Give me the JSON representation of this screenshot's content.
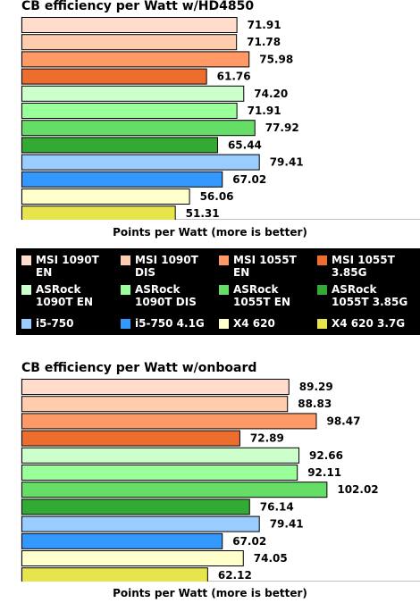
{
  "colors": {
    "MSI 1090T EN": "#ffdccc",
    "MSI 1090T DIS": "#ffccae",
    "MSI 1055T EN": "#ff9966",
    "MSI 1055T 3.85G": "#ed6d2f",
    "ASRock 1090T EN": "#ccffcc",
    "ASRock 1090T DIS": "#99ff99",
    "ASRock 1055T EN": "#66dd66",
    "ASRock 1055T 3.85G": "#33aa33",
    "i5-750": "#99ccff",
    "i5-750 4.1G": "#3399ff",
    "X4 620": "#ffffcc",
    "X4 620 3.7G": "#e6e64c"
  },
  "legend": [
    {
      "name": "MSI 1090T EN",
      "label": "MSI 1090T\nEN"
    },
    {
      "name": "MSI 1090T DIS",
      "label": "MSI 1090T\nDIS"
    },
    {
      "name": "MSI 1055T EN",
      "label": "MSI 1055T\nEN"
    },
    {
      "name": "MSI 1055T 3.85G",
      "label": "MSI 1055T\n3.85G"
    },
    {
      "name": "ASRock 1090T EN",
      "label": "ASRock\n1090T EN"
    },
    {
      "name": "ASRock 1090T DIS",
      "label": "ASRock\n1090T DIS"
    },
    {
      "name": "ASRock 1055T EN",
      "label": "ASRock\n1055T EN"
    },
    {
      "name": "ASRock 1055T 3.85G",
      "label": "ASRock\n1055T 3.85G"
    },
    {
      "name": "i5-750",
      "label": "i5-750"
    },
    {
      "name": "i5-750 4.1G",
      "label": "i5-750 4.1G"
    },
    {
      "name": "X4 620",
      "label": "X4 620"
    },
    {
      "name": "X4 620 3.7G",
      "label": "X4 620 3.7G"
    }
  ],
  "chart_data": [
    {
      "type": "bar",
      "orientation": "horizontal",
      "title": "CB efficiency per Watt w/HD4850",
      "xlabel": "Points per Watt (more is better)",
      "ylabel": "",
      "xlim": [
        0,
        112
      ],
      "grid": false,
      "legend_position": "bottom",
      "categories": [
        "MSI 1090T EN",
        "MSI 1090T DIS",
        "MSI 1055T EN",
        "MSI 1055T 3.85G",
        "ASRock 1090T EN",
        "ASRock 1090T DIS",
        "ASRock 1055T EN",
        "ASRock 1055T 3.85G",
        "i5-750",
        "i5-750 4.1G",
        "X4 620",
        "X4 620 3.7G"
      ],
      "values": [
        71.91,
        71.78,
        75.98,
        61.76,
        74.2,
        71.91,
        77.92,
        65.44,
        79.41,
        67.02,
        56.06,
        51.31
      ],
      "value_labels": [
        "71.91",
        "71.78",
        "75.98",
        "61.76",
        "74.20",
        "71.91",
        "77.92",
        "65.44",
        "79.41",
        "67.02",
        "56.06",
        "51.31"
      ]
    },
    {
      "type": "bar",
      "orientation": "horizontal",
      "title": "CB efficiency per Watt w/onboard",
      "xlabel": "Points per Watt (more is better)",
      "ylabel": "",
      "xlim": [
        0,
        112
      ],
      "grid": false,
      "legend_position": "top",
      "categories": [
        "MSI 1090T EN",
        "MSI 1090T DIS",
        "MSI 1055T EN",
        "MSI 1055T 3.85G",
        "ASRock 1090T EN",
        "ASRock 1090T DIS",
        "ASRock 1055T EN",
        "ASRock 1055T 3.85G",
        "i5-750",
        "i5-750 4.1G",
        "X4 620",
        "X4 620 3.7G"
      ],
      "values": [
        89.29,
        88.83,
        98.47,
        72.89,
        92.66,
        92.11,
        102.02,
        76.14,
        79.41,
        67.02,
        74.05,
        62.12
      ],
      "value_labels": [
        "89.29",
        "88.83",
        "98.47",
        "72.89",
        "92.66",
        "92.11",
        "102.02",
        "76.14",
        "79.41",
        "67.02",
        "74.05",
        "62.12"
      ]
    }
  ]
}
